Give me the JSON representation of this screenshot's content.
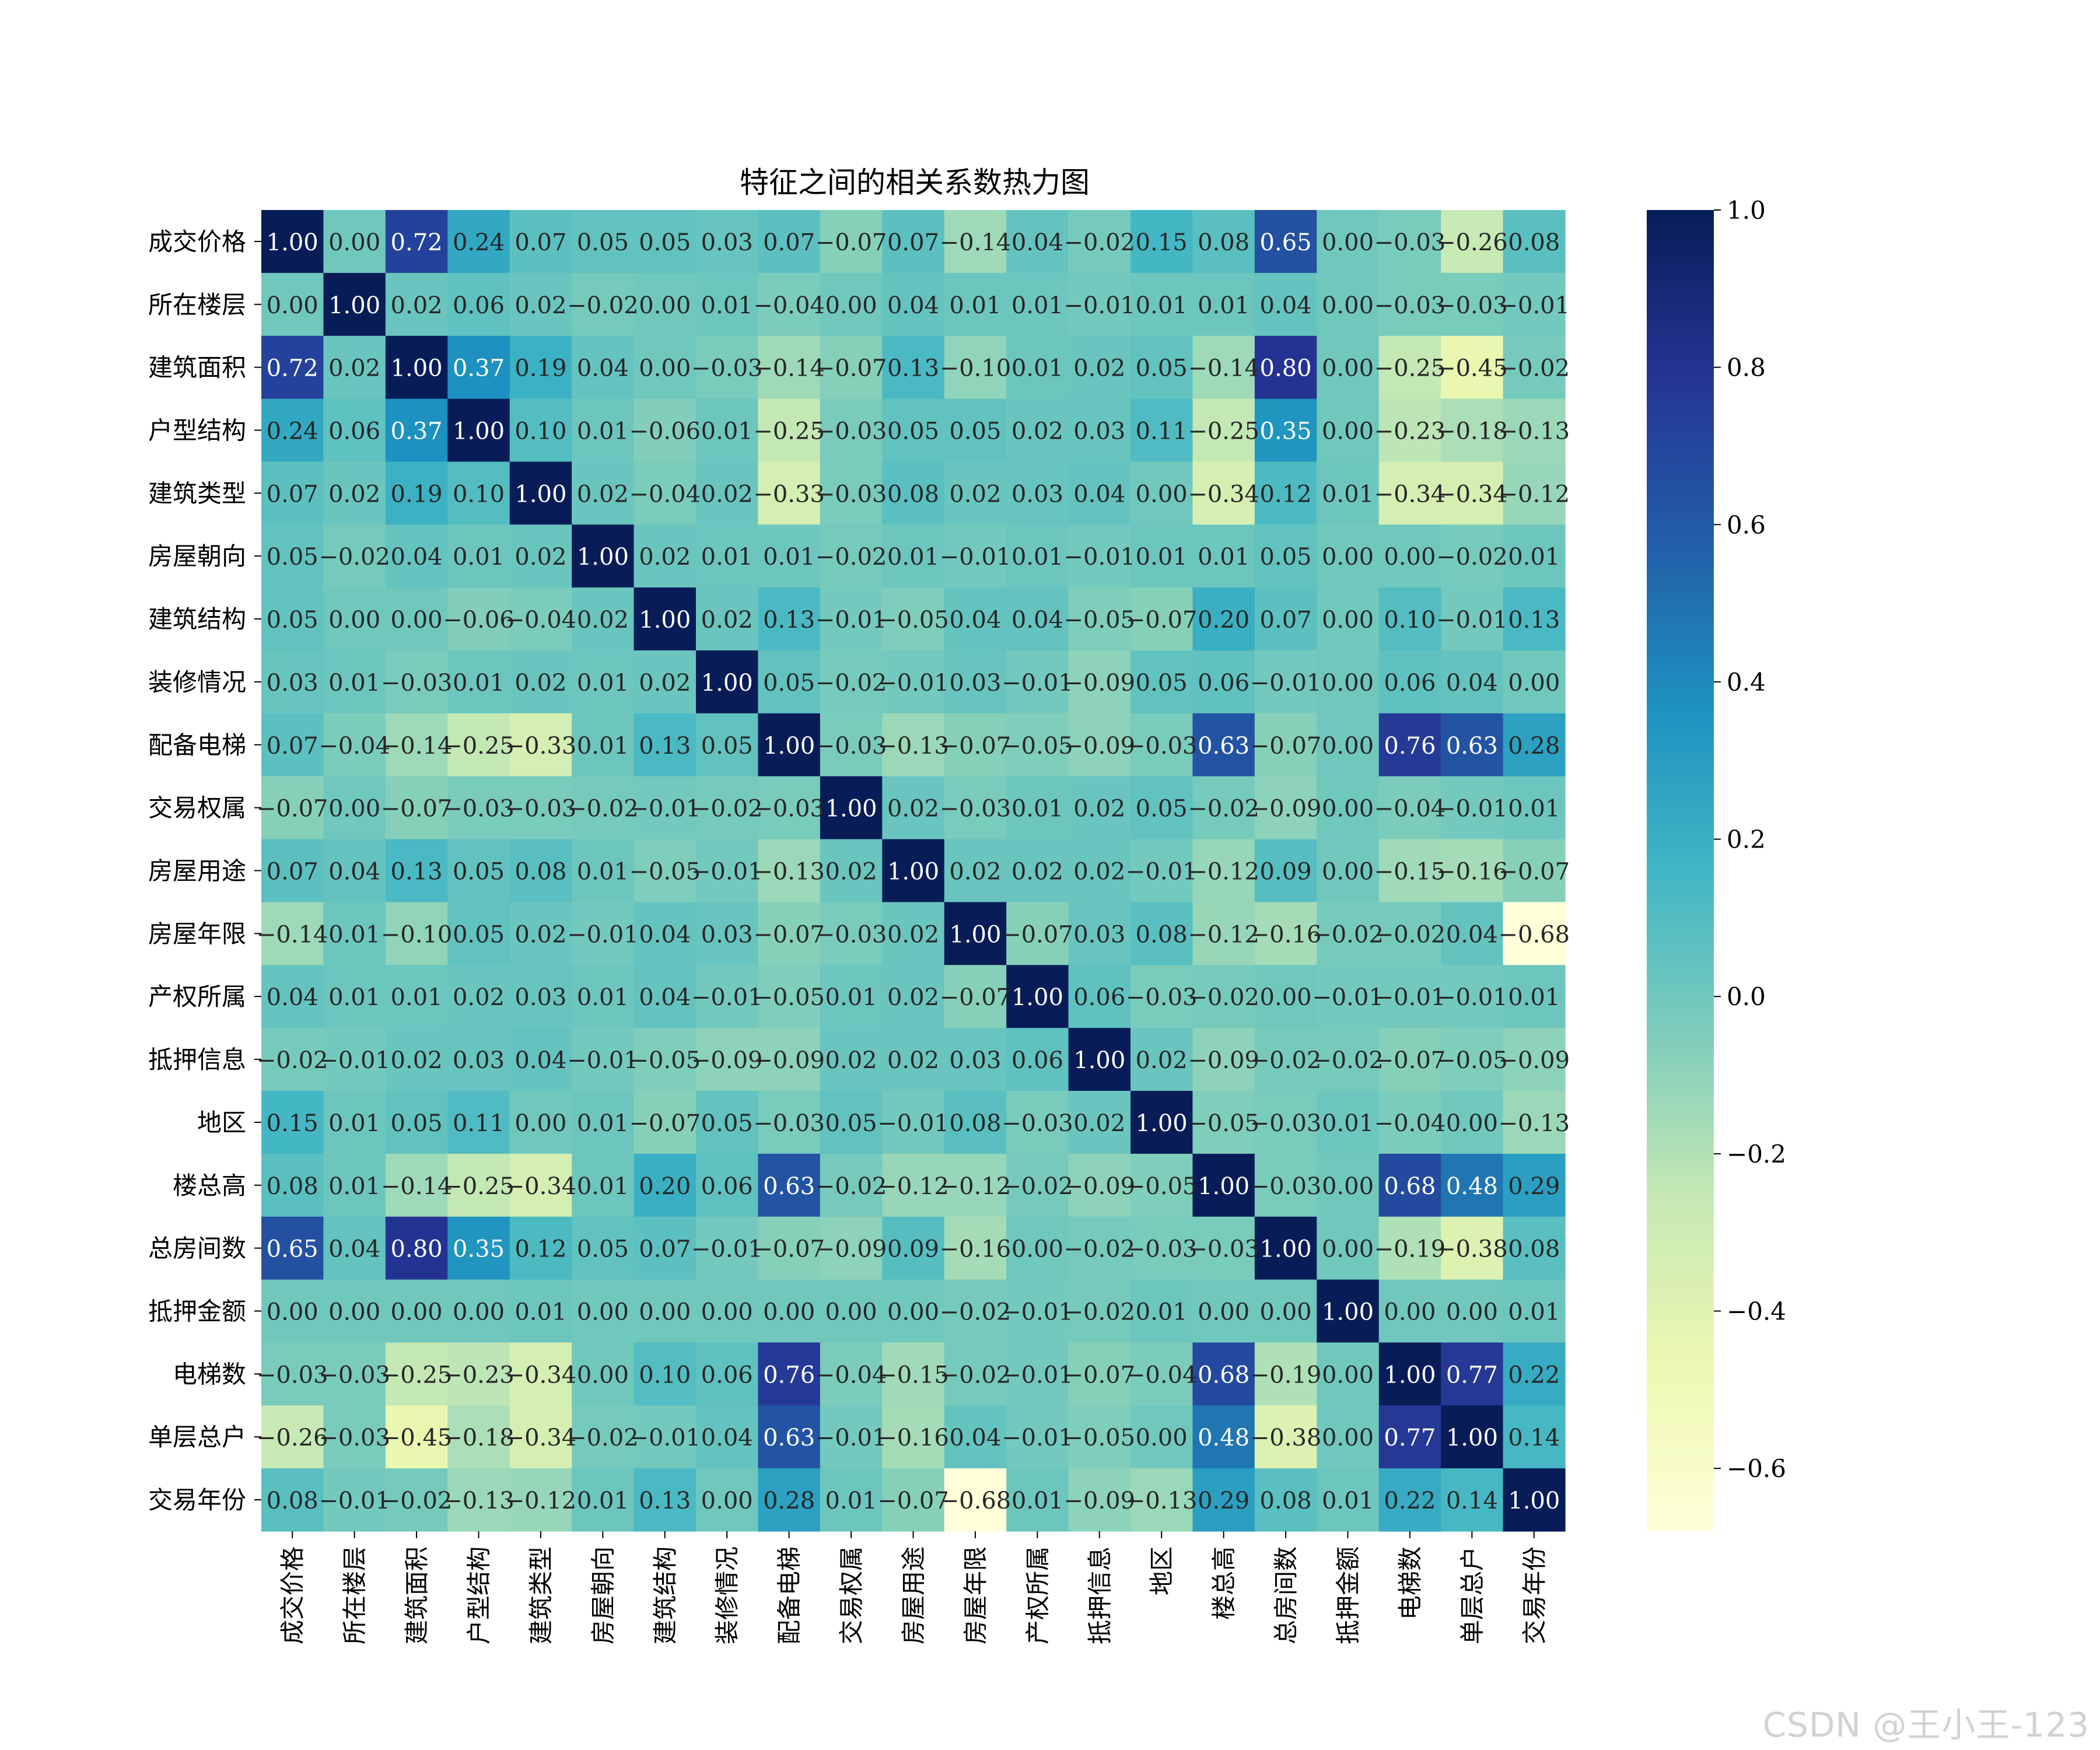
{
  "chart_data": {
    "type": "heatmap",
    "title": "特征之间的相关系数热力图",
    "labels": [
      "成交价格",
      "所在楼层",
      "建筑面积",
      "户型结构",
      "建筑类型",
      "房屋朝向",
      "建筑结构",
      "装修情况",
      "配备电梯",
      "交易权属",
      "房屋用途",
      "房屋年限",
      "产权所属",
      "抵押信息",
      "地区",
      "楼总高",
      "总房间数",
      "抵押金额",
      "电梯数",
      "单层总户",
      "交易年份"
    ],
    "matrix": [
      [
        1.0,
        -0.0,
        0.72,
        0.24,
        0.07,
        0.05,
        0.05,
        0.03,
        0.07,
        -0.07,
        0.07,
        -0.14,
        0.04,
        -0.02,
        0.15,
        0.08,
        0.65,
        -0.0,
        -0.03,
        -0.26,
        0.08
      ],
      [
        -0.0,
        1.0,
        0.02,
        0.06,
        0.02,
        -0.02,
        -0.0,
        0.01,
        -0.04,
        0.0,
        0.04,
        0.01,
        0.01,
        -0.01,
        0.01,
        0.01,
        0.04,
        -0.0,
        -0.03,
        -0.03,
        -0.01
      ],
      [
        0.72,
        0.02,
        1.0,
        0.37,
        0.19,
        0.04,
        0.0,
        -0.03,
        -0.14,
        -0.07,
        0.13,
        -0.1,
        0.01,
        0.02,
        0.05,
        -0.14,
        0.8,
        -0.0,
        -0.25,
        -0.45,
        -0.02
      ],
      [
        0.24,
        0.06,
        0.37,
        1.0,
        0.1,
        0.01,
        -0.06,
        0.01,
        -0.25,
        -0.03,
        0.05,
        0.05,
        0.02,
        0.03,
        0.11,
        -0.25,
        0.35,
        0.0,
        -0.23,
        -0.18,
        -0.13
      ],
      [
        0.07,
        0.02,
        0.19,
        0.1,
        1.0,
        0.02,
        -0.04,
        0.02,
        -0.33,
        -0.03,
        0.08,
        0.02,
        0.03,
        0.04,
        0.0,
        -0.34,
        0.12,
        0.01,
        -0.34,
        -0.34,
        -0.12
      ],
      [
        0.05,
        -0.02,
        0.04,
        0.01,
        0.02,
        1.0,
        0.02,
        0.01,
        0.01,
        -0.02,
        0.01,
        -0.01,
        0.01,
        -0.01,
        0.01,
        0.01,
        0.05,
        -0.0,
        -0.0,
        -0.02,
        0.01
      ],
      [
        0.05,
        -0.0,
        0.0,
        -0.06,
        -0.04,
        0.02,
        1.0,
        0.02,
        0.13,
        -0.01,
        -0.05,
        0.04,
        0.04,
        -0.05,
        -0.07,
        0.2,
        0.07,
        0.0,
        0.1,
        -0.01,
        0.13
      ],
      [
        0.03,
        0.01,
        -0.03,
        0.01,
        0.02,
        0.01,
        0.02,
        1.0,
        0.05,
        -0.02,
        -0.01,
        0.03,
        -0.01,
        -0.09,
        0.05,
        0.06,
        -0.01,
        -0.0,
        0.06,
        0.04,
        -0.0
      ],
      [
        0.07,
        -0.04,
        -0.14,
        -0.25,
        -0.33,
        0.01,
        0.13,
        0.05,
        1.0,
        -0.03,
        -0.13,
        -0.07,
        -0.05,
        -0.09,
        -0.03,
        0.63,
        -0.07,
        0.0,
        0.76,
        0.63,
        0.28
      ],
      [
        -0.07,
        0.0,
        -0.07,
        -0.03,
        -0.03,
        -0.02,
        -0.01,
        -0.02,
        -0.03,
        1.0,
        0.02,
        -0.03,
        0.01,
        0.02,
        0.05,
        -0.02,
        -0.09,
        -0.0,
        -0.04,
        -0.01,
        0.01
      ],
      [
        0.07,
        0.04,
        0.13,
        0.05,
        0.08,
        0.01,
        -0.05,
        -0.01,
        -0.13,
        0.02,
        1.0,
        0.02,
        0.02,
        0.02,
        -0.01,
        -0.12,
        0.09,
        0.0,
        -0.15,
        -0.16,
        -0.07
      ],
      [
        -0.14,
        0.01,
        -0.1,
        0.05,
        0.02,
        -0.01,
        0.04,
        0.03,
        -0.07,
        -0.03,
        0.02,
        1.0,
        -0.07,
        0.03,
        0.08,
        -0.12,
        -0.16,
        -0.02,
        -0.02,
        0.04,
        -0.68
      ],
      [
        0.04,
        0.01,
        0.01,
        0.02,
        0.03,
        0.01,
        0.04,
        -0.01,
        -0.05,
        0.01,
        0.02,
        -0.07,
        1.0,
        0.06,
        -0.03,
        -0.02,
        -0.0,
        -0.01,
        -0.01,
        -0.01,
        0.01
      ],
      [
        -0.02,
        -0.01,
        0.02,
        0.03,
        0.04,
        -0.01,
        -0.05,
        -0.09,
        -0.09,
        0.02,
        0.02,
        0.03,
        0.06,
        1.0,
        0.02,
        -0.09,
        -0.02,
        -0.02,
        -0.07,
        -0.05,
        -0.09
      ],
      [
        0.15,
        0.01,
        0.05,
        0.11,
        0.0,
        0.01,
        -0.07,
        0.05,
        -0.03,
        0.05,
        -0.01,
        0.08,
        -0.03,
        0.02,
        1.0,
        -0.05,
        -0.03,
        0.01,
        -0.04,
        0.0,
        -0.13
      ],
      [
        0.08,
        0.01,
        -0.14,
        -0.25,
        -0.34,
        0.01,
        0.2,
        0.06,
        0.63,
        -0.02,
        -0.12,
        -0.12,
        -0.02,
        -0.09,
        -0.05,
        1.0,
        -0.03,
        -0.0,
        0.68,
        0.48,
        0.29
      ],
      [
        0.65,
        0.04,
        0.8,
        0.35,
        0.12,
        0.05,
        0.07,
        -0.01,
        -0.07,
        -0.09,
        0.09,
        -0.16,
        -0.0,
        -0.02,
        -0.03,
        -0.03,
        1.0,
        0.0,
        -0.19,
        -0.38,
        0.08
      ],
      [
        -0.0,
        -0.0,
        -0.0,
        0.0,
        0.01,
        -0.0,
        0.0,
        -0.0,
        0.0,
        -0.0,
        0.0,
        -0.02,
        -0.01,
        -0.02,
        0.01,
        -0.0,
        0.0,
        1.0,
        0.0,
        0.0,
        0.01
      ],
      [
        -0.03,
        -0.03,
        -0.25,
        -0.23,
        -0.34,
        -0.0,
        0.1,
        0.06,
        0.76,
        -0.04,
        -0.15,
        -0.02,
        -0.01,
        -0.07,
        -0.04,
        0.68,
        -0.19,
        0.0,
        1.0,
        0.77,
        0.22
      ],
      [
        -0.26,
        -0.03,
        -0.45,
        -0.18,
        -0.34,
        -0.02,
        -0.01,
        0.04,
        0.63,
        -0.01,
        -0.16,
        0.04,
        -0.01,
        -0.05,
        0.0,
        0.48,
        -0.38,
        0.0,
        0.77,
        1.0,
        0.14
      ],
      [
        0.08,
        -0.01,
        -0.02,
        -0.13,
        -0.12,
        0.01,
        0.13,
        -0.0,
        0.28,
        0.01,
        -0.07,
        -0.68,
        0.01,
        -0.09,
        -0.13,
        0.29,
        0.08,
        0.01,
        0.22,
        0.14,
        1.0
      ]
    ],
    "colorscale": "YlGnBu",
    "vmin": -0.68,
    "vmax": 1.0,
    "colorbar_ticks": [
      1.0,
      0.8,
      0.6,
      0.4,
      0.2,
      0.0,
      -0.2,
      -0.4,
      -0.6
    ],
    "colorbar_tick_labels": [
      "1.0",
      "0.8",
      "0.6",
      "0.4",
      "0.2",
      "0.0",
      "−0.2",
      "−0.4",
      "−0.6"
    ],
    "legend": "right"
  },
  "watermark": "CSDN @王小王-123"
}
